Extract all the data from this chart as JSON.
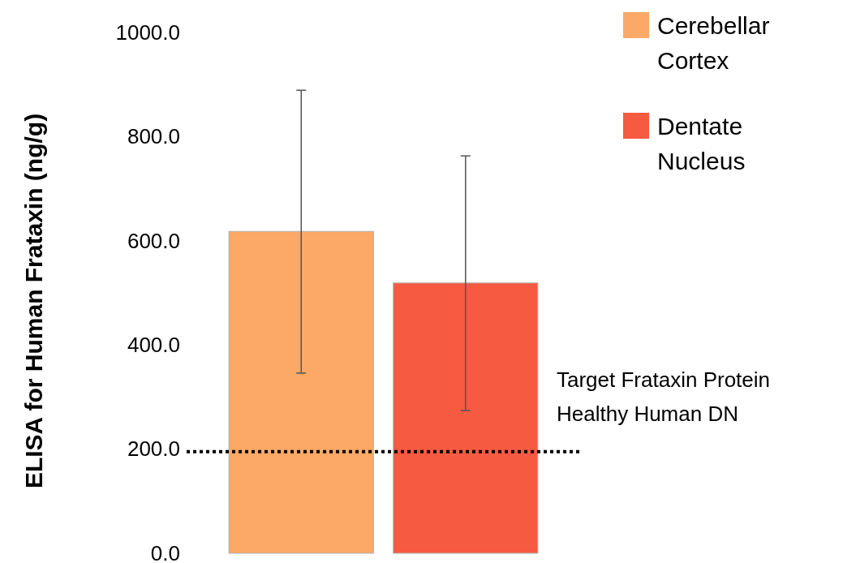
{
  "chart_data": {
    "type": "bar",
    "ylabel": "ELISA for Human Frataxin (ng/g)",
    "categories": [
      null
    ],
    "series": [
      {
        "name": "Cerebellar Cortex",
        "color": "#fca866",
        "values": [
          618
        ],
        "errors": [
          [
            346,
            889
          ]
        ]
      },
      {
        "name": "Dentate Nucleus",
        "color": "#f65a40",
        "values": [
          519
        ],
        "errors": [
          [
            274,
            763
          ]
        ]
      }
    ],
    "ylim": [
      0,
      1000
    ],
    "yticks": [
      {
        "value": 0,
        "label": "0.0"
      },
      {
        "value": 200,
        "label": "200.0"
      },
      {
        "value": 400,
        "label": "400.0"
      },
      {
        "value": 600,
        "label": "600.0"
      },
      {
        "value": 800,
        "label": "800.0"
      },
      {
        "value": 1000,
        "label": "1000.0"
      }
    ],
    "ref_lines": [
      {
        "axis": "y",
        "value": 195,
        "label": "Target Frataxin Protein\nHealthy Human DN",
        "color": "#000000",
        "line_style": "dotted"
      }
    ],
    "grid": false,
    "legend": "top right"
  }
}
